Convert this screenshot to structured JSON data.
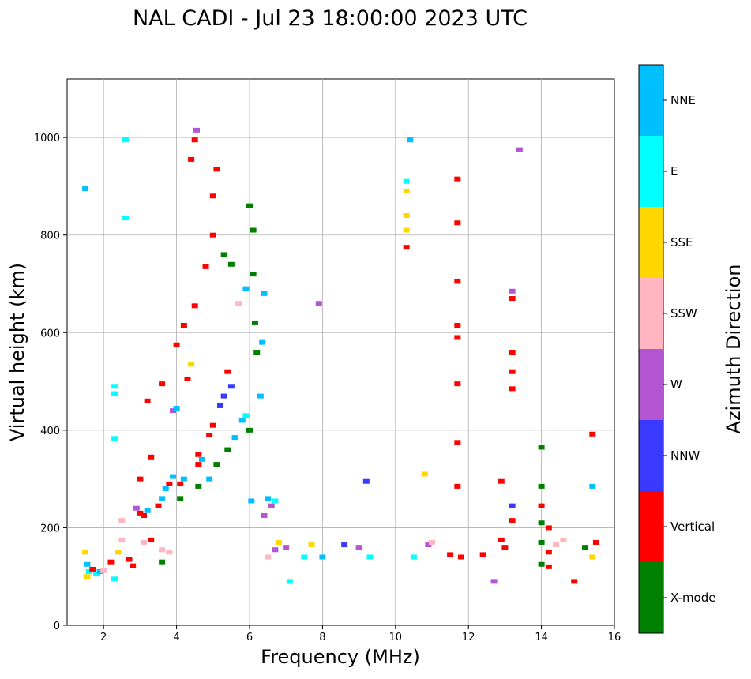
{
  "chart_data": {
    "type": "scatter",
    "title": "NAL CADI - Jul 23 18:00:00 2023 UTC",
    "xlabel": "Frequency (MHz)",
    "ylabel": "Virtual height (km)",
    "xlim": [
      1,
      16
    ],
    "ylim": [
      0,
      1120
    ],
    "xticks": [
      2,
      4,
      6,
      8,
      10,
      12,
      14,
      16
    ],
    "yticks": [
      0,
      200,
      400,
      600,
      800,
      1000
    ],
    "grid": true,
    "colorbar": {
      "label": "Azimuth Direction",
      "categories": [
        {
          "name": "X-mode",
          "color": "#008000"
        },
        {
          "name": "Vertical",
          "color": "#ff0000"
        },
        {
          "name": "NNW",
          "color": "#3a3aff"
        },
        {
          "name": "W",
          "color": "#b455d4"
        },
        {
          "name": "SSW",
          "color": "#ffb6c1"
        },
        {
          "name": "SSE",
          "color": "#ffd700"
        },
        {
          "name": "E",
          "color": "#00ffff"
        },
        {
          "name": "NNE",
          "color": "#00bfff"
        }
      ]
    },
    "points": [
      [
        1.5,
        895,
        "NNE"
      ],
      [
        1.5,
        150,
        "SSE"
      ],
      [
        1.55,
        125,
        "NNE"
      ],
      [
        1.6,
        110,
        "E"
      ],
      [
        1.55,
        100,
        "SSE"
      ],
      [
        1.7,
        115,
        "Vertical"
      ],
      [
        1.8,
        105,
        "E"
      ],
      [
        1.9,
        110,
        "NNE"
      ],
      [
        2.0,
        112,
        "SSW"
      ],
      [
        2.2,
        130,
        "Vertical"
      ],
      [
        2.3,
        490,
        "E"
      ],
      [
        2.3,
        475,
        "E"
      ],
      [
        2.3,
        383,
        "E"
      ],
      [
        2.3,
        95,
        "E"
      ],
      [
        2.4,
        150,
        "SSE"
      ],
      [
        2.5,
        215,
        "SSW"
      ],
      [
        2.5,
        175,
        "SSW"
      ],
      [
        2.6,
        995,
        "E"
      ],
      [
        2.6,
        835,
        "E"
      ],
      [
        2.7,
        135,
        "Vertical"
      ],
      [
        2.8,
        122,
        "Vertical"
      ],
      [
        2.9,
        240,
        "W"
      ],
      [
        3.0,
        230,
        "Vertical"
      ],
      [
        3.0,
        300,
        "Vertical"
      ],
      [
        3.1,
        225,
        "Vertical"
      ],
      [
        3.2,
        235,
        "NNE"
      ],
      [
        3.2,
        460,
        "Vertical"
      ],
      [
        3.3,
        345,
        "Vertical"
      ],
      [
        3.1,
        170,
        "SSW"
      ],
      [
        3.3,
        175,
        "Vertical"
      ],
      [
        3.5,
        245,
        "Vertical"
      ],
      [
        3.6,
        260,
        "NNE"
      ],
      [
        3.6,
        495,
        "Vertical"
      ],
      [
        3.7,
        280,
        "NNE"
      ],
      [
        3.8,
        290,
        "Vertical"
      ],
      [
        3.9,
        440,
        "W"
      ],
      [
        3.6,
        155,
        "SSW"
      ],
      [
        3.8,
        150,
        "SSW"
      ],
      [
        3.6,
        130,
        "X-mode"
      ],
      [
        3.9,
        305,
        "NNE"
      ],
      [
        4.0,
        445,
        "NNE"
      ],
      [
        4.0,
        575,
        "Vertical"
      ],
      [
        4.1,
        290,
        "Vertical"
      ],
      [
        4.1,
        260,
        "X-mode"
      ],
      [
        4.2,
        300,
        "NNE"
      ],
      [
        4.2,
        615,
        "Vertical"
      ],
      [
        4.3,
        505,
        "Vertical"
      ],
      [
        4.4,
        535,
        "SSE"
      ],
      [
        4.4,
        955,
        "Vertical"
      ],
      [
        4.5,
        655,
        "Vertical"
      ],
      [
        4.5,
        995,
        "Vertical"
      ],
      [
        4.55,
        1015,
        "W"
      ],
      [
        4.6,
        330,
        "Vertical"
      ],
      [
        4.6,
        350,
        "Vertical"
      ],
      [
        4.6,
        285,
        "X-mode"
      ],
      [
        4.7,
        340,
        "NNE"
      ],
      [
        4.8,
        735,
        "Vertical"
      ],
      [
        4.9,
        390,
        "Vertical"
      ],
      [
        4.9,
        300,
        "NNE"
      ],
      [
        5.0,
        410,
        "Vertical"
      ],
      [
        5.0,
        880,
        "Vertical"
      ],
      [
        5.1,
        935,
        "Vertical"
      ],
      [
        5.0,
        800,
        "Vertical"
      ],
      [
        5.1,
        330,
        "X-mode"
      ],
      [
        5.2,
        450,
        "NNW"
      ],
      [
        5.3,
        470,
        "NNW"
      ],
      [
        5.3,
        760,
        "X-mode"
      ],
      [
        5.4,
        360,
        "X-mode"
      ],
      [
        5.4,
        520,
        "Vertical"
      ],
      [
        5.5,
        490,
        "NNW"
      ],
      [
        5.5,
        740,
        "X-mode"
      ],
      [
        5.6,
        385,
        "NNE"
      ],
      [
        5.7,
        660,
        "SSW"
      ],
      [
        5.8,
        420,
        "NNE"
      ],
      [
        5.9,
        430,
        "E"
      ],
      [
        5.9,
        690,
        "NNE"
      ],
      [
        6.0,
        400,
        "X-mode"
      ],
      [
        6.0,
        860,
        "X-mode"
      ],
      [
        6.05,
        255,
        "NNE"
      ],
      [
        6.1,
        720,
        "X-mode"
      ],
      [
        6.1,
        810,
        "X-mode"
      ],
      [
        6.15,
        620,
        "X-mode"
      ],
      [
        6.2,
        560,
        "X-mode"
      ],
      [
        6.3,
        470,
        "NNE"
      ],
      [
        6.35,
        580,
        "NNE"
      ],
      [
        6.4,
        680,
        "NNE"
      ],
      [
        6.4,
        225,
        "W"
      ],
      [
        6.5,
        260,
        "NNE"
      ],
      [
        6.6,
        245,
        "W"
      ],
      [
        6.7,
        255,
        "E"
      ],
      [
        6.5,
        140,
        "SSW"
      ],
      [
        6.7,
        155,
        "W"
      ],
      [
        6.8,
        170,
        "SSE"
      ],
      [
        7.0,
        160,
        "W"
      ],
      [
        7.1,
        90,
        "E"
      ],
      [
        7.5,
        140,
        "E"
      ],
      [
        7.7,
        165,
        "SSE"
      ],
      [
        7.9,
        660,
        "W"
      ],
      [
        8.0,
        140,
        "NNE"
      ],
      [
        8.6,
        165,
        "NNW"
      ],
      [
        9.0,
        160,
        "W"
      ],
      [
        9.2,
        295,
        "NNW"
      ],
      [
        9.3,
        140,
        "E"
      ],
      [
        10.3,
        910,
        "E"
      ],
      [
        10.3,
        890,
        "SSE"
      ],
      [
        10.3,
        840,
        "SSE"
      ],
      [
        10.3,
        810,
        "SSE"
      ],
      [
        10.3,
        775,
        "Vertical"
      ],
      [
        10.4,
        995,
        "NNE"
      ],
      [
        10.5,
        140,
        "E"
      ],
      [
        10.9,
        165,
        "W"
      ],
      [
        11.0,
        170,
        "SSW"
      ],
      [
        10.8,
        310,
        "SSE"
      ],
      [
        11.5,
        145,
        "Vertical"
      ],
      [
        11.7,
        915,
        "Vertical"
      ],
      [
        11.7,
        825,
        "Vertical"
      ],
      [
        11.7,
        705,
        "Vertical"
      ],
      [
        11.7,
        615,
        "Vertical"
      ],
      [
        11.7,
        590,
        "Vertical"
      ],
      [
        11.7,
        495,
        "Vertical"
      ],
      [
        11.7,
        375,
        "Vertical"
      ],
      [
        11.7,
        285,
        "Vertical"
      ],
      [
        11.8,
        140,
        "Vertical"
      ],
      [
        12.4,
        145,
        "Vertical"
      ],
      [
        12.7,
        90,
        "W"
      ],
      [
        12.9,
        295,
        "Vertical"
      ],
      [
        12.9,
        175,
        "Vertical"
      ],
      [
        13.0,
        160,
        "Vertical"
      ],
      [
        13.2,
        685,
        "W"
      ],
      [
        13.2,
        670,
        "Vertical"
      ],
      [
        13.2,
        560,
        "Vertical"
      ],
      [
        13.2,
        520,
        "Vertical"
      ],
      [
        13.2,
        485,
        "Vertical"
      ],
      [
        13.2,
        245,
        "NNW"
      ],
      [
        13.2,
        215,
        "Vertical"
      ],
      [
        13.4,
        975,
        "W"
      ],
      [
        14.0,
        365,
        "X-mode"
      ],
      [
        14.0,
        285,
        "X-mode"
      ],
      [
        14.0,
        245,
        "Vertical"
      ],
      [
        14.0,
        210,
        "X-mode"
      ],
      [
        14.0,
        170,
        "X-mode"
      ],
      [
        14.0,
        125,
        "X-mode"
      ],
      [
        14.2,
        150,
        "Vertical"
      ],
      [
        14.2,
        120,
        "Vertical"
      ],
      [
        14.2,
        200,
        "Vertical"
      ],
      [
        14.4,
        165,
        "SSW"
      ],
      [
        14.6,
        175,
        "SSW"
      ],
      [
        14.9,
        90,
        "Vertical"
      ],
      [
        15.2,
        160,
        "X-mode"
      ],
      [
        15.4,
        285,
        "NNE"
      ],
      [
        15.4,
        392,
        "Vertical"
      ],
      [
        15.4,
        140,
        "SSE"
      ],
      [
        15.5,
        170,
        "Vertical"
      ]
    ]
  }
}
